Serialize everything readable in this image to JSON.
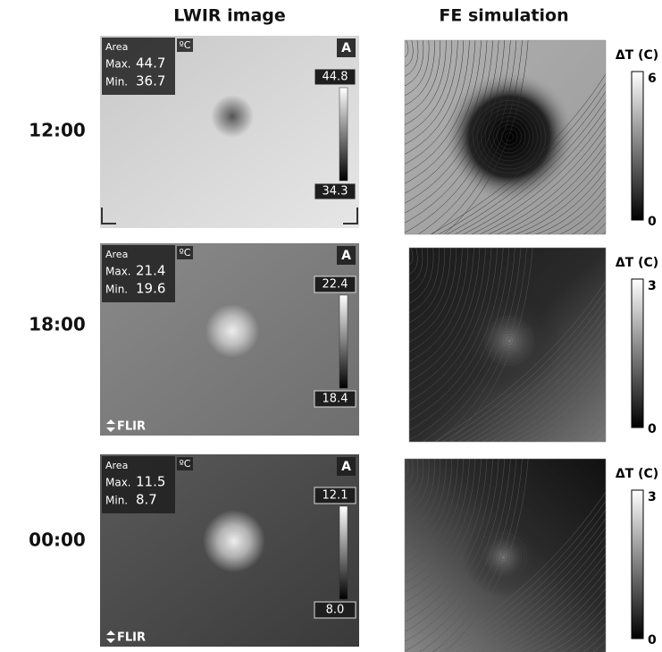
{
  "headers": {
    "lwir": "LWIR image",
    "fe": "FE simulation"
  },
  "rows": [
    {
      "time": "12:00",
      "lwir": {
        "area": "Area",
        "unit": "ºC",
        "max_label": "Max.",
        "max": "44.7",
        "min_label": "Min.",
        "min": "36.7",
        "mode": "A",
        "scale_top": "44.8",
        "scale_bottom": "34.3"
      },
      "fe": {
        "colorbar_label": "ΔT (C)",
        "colorbar_max": "6",
        "colorbar_min": "0"
      }
    },
    {
      "time": "18:00",
      "lwir": {
        "area": "Area",
        "unit": "ºC",
        "max_label": "Max.",
        "max": "21.4",
        "min_label": "Min.",
        "min": "19.6",
        "mode": "A",
        "scale_top": "22.4",
        "scale_bottom": "18.4",
        "logo": "FLIR"
      },
      "fe": {
        "colorbar_label": "ΔT (C)",
        "colorbar_max": "3",
        "colorbar_min": "0"
      }
    },
    {
      "time": "00:00",
      "lwir": {
        "area": "Area",
        "unit": "ºC",
        "max_label": "Max.",
        "max": "11.5",
        "min_label": "Min.",
        "min": "8.7",
        "mode": "A",
        "scale_top": "12.1",
        "scale_bottom": "8.0",
        "logo": "FLIR"
      },
      "fe": {
        "colorbar_label": "ΔT (C)",
        "colorbar_max": "3",
        "colorbar_min": "0"
      }
    }
  ]
}
